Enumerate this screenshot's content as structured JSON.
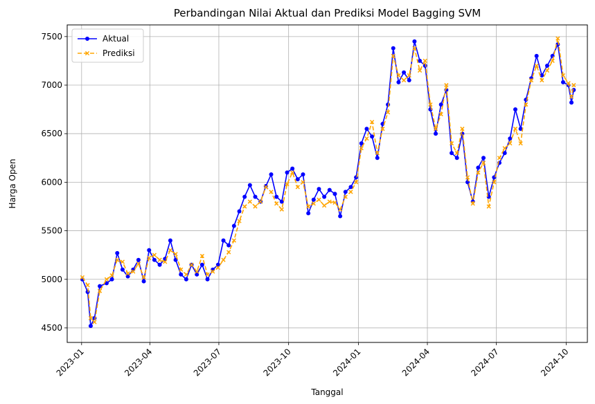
{
  "chart_data": {
    "type": "line",
    "title": "Perbandingan Nilai Aktual dan Prediksi Model Bagging SVM",
    "xlabel": "Tanggal",
    "ylabel": "Harga Open",
    "x_ticks": [
      "2023-01",
      "2023-04",
      "2023-07",
      "2023-10",
      "2024-01",
      "2024-04",
      "2024-07",
      "2024-10"
    ],
    "y_ticks": [
      4500,
      5000,
      5500,
      6000,
      6500,
      7000,
      7500
    ],
    "xlim": [
      "2022-12-13",
      "2024-10-29"
    ],
    "ylim": [
      4350,
      7620
    ],
    "grid": true,
    "legend_position": "upper-left",
    "series": [
      {
        "name": "Aktual",
        "color": "#0000ff",
        "marker": "circle",
        "linestyle": "solid",
        "points": [
          [
            "2023-01-02",
            5000
          ],
          [
            "2023-01-09",
            4870
          ],
          [
            "2023-01-13",
            4520
          ],
          [
            "2023-01-18",
            4600
          ],
          [
            "2023-01-25",
            4930
          ],
          [
            "2023-02-03",
            4960
          ],
          [
            "2023-02-10",
            5000
          ],
          [
            "2023-02-17",
            5270
          ],
          [
            "2023-02-24",
            5100
          ],
          [
            "2023-03-03",
            5030
          ],
          [
            "2023-03-10",
            5100
          ],
          [
            "2023-03-17",
            5200
          ],
          [
            "2023-03-24",
            4980
          ],
          [
            "2023-03-31",
            5300
          ],
          [
            "2023-04-07",
            5200
          ],
          [
            "2023-04-14",
            5150
          ],
          [
            "2023-04-21",
            5210
          ],
          [
            "2023-04-28",
            5400
          ],
          [
            "2023-05-05",
            5200
          ],
          [
            "2023-05-12",
            5050
          ],
          [
            "2023-05-19",
            5000
          ],
          [
            "2023-05-26",
            5150
          ],
          [
            "2023-06-02",
            5050
          ],
          [
            "2023-06-09",
            5150
          ],
          [
            "2023-06-16",
            5000
          ],
          [
            "2023-06-23",
            5100
          ],
          [
            "2023-06-30",
            5150
          ],
          [
            "2023-07-07",
            5400
          ],
          [
            "2023-07-14",
            5350
          ],
          [
            "2023-07-21",
            5550
          ],
          [
            "2023-07-28",
            5700
          ],
          [
            "2023-08-04",
            5850
          ],
          [
            "2023-08-11",
            5970
          ],
          [
            "2023-08-18",
            5850
          ],
          [
            "2023-08-25",
            5800
          ],
          [
            "2023-09-01",
            5960
          ],
          [
            "2023-09-08",
            6080
          ],
          [
            "2023-09-15",
            5850
          ],
          [
            "2023-09-22",
            5800
          ],
          [
            "2023-09-29",
            6100
          ],
          [
            "2023-10-06",
            6140
          ],
          [
            "2023-10-13",
            6030
          ],
          [
            "2023-10-20",
            6080
          ],
          [
            "2023-10-27",
            5680
          ],
          [
            "2023-11-03",
            5820
          ],
          [
            "2023-11-10",
            5930
          ],
          [
            "2023-11-17",
            5850
          ],
          [
            "2023-11-24",
            5920
          ],
          [
            "2023-12-01",
            5880
          ],
          [
            "2023-12-08",
            5650
          ],
          [
            "2023-12-15",
            5900
          ],
          [
            "2023-12-22",
            5950
          ],
          [
            "2023-12-29",
            6050
          ],
          [
            "2024-01-05",
            6400
          ],
          [
            "2024-01-12",
            6550
          ],
          [
            "2024-01-19",
            6470
          ],
          [
            "2024-01-26",
            6250
          ],
          [
            "2024-02-02",
            6600
          ],
          [
            "2024-02-09",
            6800
          ],
          [
            "2024-02-16",
            7380
          ],
          [
            "2024-02-23",
            7030
          ],
          [
            "2024-03-01",
            7130
          ],
          [
            "2024-03-08",
            7050
          ],
          [
            "2024-03-15",
            7450
          ],
          [
            "2024-03-22",
            7250
          ],
          [
            "2024-03-29",
            7200
          ],
          [
            "2024-04-05",
            6750
          ],
          [
            "2024-04-12",
            6500
          ],
          [
            "2024-04-19",
            6800
          ],
          [
            "2024-04-26",
            6950
          ],
          [
            "2024-05-03",
            6300
          ],
          [
            "2024-05-10",
            6250
          ],
          [
            "2024-05-17",
            6500
          ],
          [
            "2024-05-24",
            6000
          ],
          [
            "2024-05-31",
            5800
          ],
          [
            "2024-06-07",
            6150
          ],
          [
            "2024-06-14",
            6250
          ],
          [
            "2024-06-21",
            5850
          ],
          [
            "2024-06-28",
            6050
          ],
          [
            "2024-07-05",
            6200
          ],
          [
            "2024-07-12",
            6300
          ],
          [
            "2024-07-19",
            6450
          ],
          [
            "2024-07-26",
            6750
          ],
          [
            "2024-08-02",
            6550
          ],
          [
            "2024-08-09",
            6850
          ],
          [
            "2024-08-16",
            7070
          ],
          [
            "2024-08-23",
            7300
          ],
          [
            "2024-08-30",
            7100
          ],
          [
            "2024-09-06",
            7200
          ],
          [
            "2024-09-13",
            7300
          ],
          [
            "2024-09-20",
            7420
          ],
          [
            "2024-09-27",
            7030
          ],
          [
            "2024-10-04",
            7000
          ],
          [
            "2024-10-08",
            6820
          ],
          [
            "2024-10-11",
            6950
          ]
        ]
      },
      {
        "name": "Prediksi",
        "color": "#ffa500",
        "marker": "x",
        "linestyle": "dashed",
        "points": [
          [
            "2023-01-02",
            5020
          ],
          [
            "2023-01-09",
            4940
          ],
          [
            "2023-01-13",
            4600
          ],
          [
            "2023-01-18",
            4560
          ],
          [
            "2023-01-25",
            4880
          ],
          [
            "2023-02-03",
            5000
          ],
          [
            "2023-02-10",
            5040
          ],
          [
            "2023-02-17",
            5200
          ],
          [
            "2023-02-24",
            5180
          ],
          [
            "2023-03-03",
            5060
          ],
          [
            "2023-03-10",
            5080
          ],
          [
            "2023-03-17",
            5160
          ],
          [
            "2023-03-24",
            5020
          ],
          [
            "2023-03-31",
            5220
          ],
          [
            "2023-04-07",
            5250
          ],
          [
            "2023-04-14",
            5200
          ],
          [
            "2023-04-21",
            5180
          ],
          [
            "2023-04-28",
            5300
          ],
          [
            "2023-05-05",
            5260
          ],
          [
            "2023-05-12",
            5100
          ],
          [
            "2023-05-19",
            5050
          ],
          [
            "2023-05-26",
            5150
          ],
          [
            "2023-06-02",
            5080
          ],
          [
            "2023-06-09",
            5240
          ],
          [
            "2023-06-16",
            5050
          ],
          [
            "2023-06-23",
            5080
          ],
          [
            "2023-06-30",
            5120
          ],
          [
            "2023-07-07",
            5200
          ],
          [
            "2023-07-14",
            5280
          ],
          [
            "2023-07-21",
            5400
          ],
          [
            "2023-07-28",
            5600
          ],
          [
            "2023-08-04",
            5750
          ],
          [
            "2023-08-11",
            5800
          ],
          [
            "2023-08-18",
            5750
          ],
          [
            "2023-08-25",
            5800
          ],
          [
            "2023-09-01",
            5950
          ],
          [
            "2023-09-08",
            5900
          ],
          [
            "2023-09-15",
            5780
          ],
          [
            "2023-09-22",
            5720
          ],
          [
            "2023-09-29",
            5980
          ],
          [
            "2023-10-06",
            6100
          ],
          [
            "2023-10-13",
            5950
          ],
          [
            "2023-10-20",
            6000
          ],
          [
            "2023-10-27",
            5750
          ],
          [
            "2023-11-03",
            5780
          ],
          [
            "2023-11-10",
            5820
          ],
          [
            "2023-11-17",
            5760
          ],
          [
            "2023-11-24",
            5800
          ],
          [
            "2023-12-01",
            5790
          ],
          [
            "2023-12-08",
            5720
          ],
          [
            "2023-12-15",
            5850
          ],
          [
            "2023-12-22",
            5900
          ],
          [
            "2023-12-29",
            6000
          ],
          [
            "2024-01-05",
            6350
          ],
          [
            "2024-01-12",
            6450
          ],
          [
            "2024-01-19",
            6620
          ],
          [
            "2024-01-26",
            6300
          ],
          [
            "2024-02-02",
            6550
          ],
          [
            "2024-02-09",
            6720
          ],
          [
            "2024-02-16",
            7300
          ],
          [
            "2024-02-23",
            7100
          ],
          [
            "2024-03-01",
            7050
          ],
          [
            "2024-03-08",
            7100
          ],
          [
            "2024-03-15",
            7380
          ],
          [
            "2024-03-22",
            7150
          ],
          [
            "2024-03-29",
            7250
          ],
          [
            "2024-04-05",
            6800
          ],
          [
            "2024-04-12",
            6550
          ],
          [
            "2024-04-19",
            6700
          ],
          [
            "2024-04-26",
            7000
          ],
          [
            "2024-05-03",
            6400
          ],
          [
            "2024-05-10",
            6300
          ],
          [
            "2024-05-17",
            6550
          ],
          [
            "2024-05-24",
            6050
          ],
          [
            "2024-05-31",
            5780
          ],
          [
            "2024-06-07",
            6100
          ],
          [
            "2024-06-14",
            6200
          ],
          [
            "2024-06-21",
            5750
          ],
          [
            "2024-06-28",
            6000
          ],
          [
            "2024-07-05",
            6250
          ],
          [
            "2024-07-12",
            6350
          ],
          [
            "2024-07-19",
            6400
          ],
          [
            "2024-07-26",
            6550
          ],
          [
            "2024-08-02",
            6400
          ],
          [
            "2024-08-09",
            6800
          ],
          [
            "2024-08-16",
            7050
          ],
          [
            "2024-08-23",
            7200
          ],
          [
            "2024-08-30",
            7050
          ],
          [
            "2024-09-06",
            7150
          ],
          [
            "2024-09-13",
            7250
          ],
          [
            "2024-09-20",
            7480
          ],
          [
            "2024-09-27",
            7100
          ],
          [
            "2024-10-04",
            7020
          ],
          [
            "2024-10-08",
            6880
          ],
          [
            "2024-10-11",
            7000
          ]
        ]
      }
    ]
  }
}
